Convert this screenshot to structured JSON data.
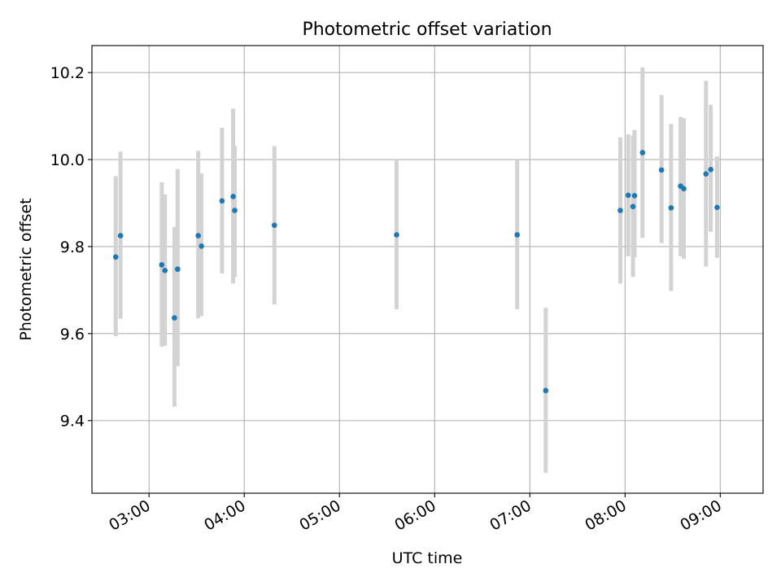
{
  "chart_data": {
    "type": "scatter",
    "title": "Photometric offset variation",
    "xlabel": "UTC time",
    "ylabel": "Photometric offset",
    "x_axis_type": "time",
    "xlim": [
      "02:24",
      "09:27"
    ],
    "ylim": [
      9.233,
      10.262
    ],
    "x_ticks": [
      "03:00",
      "04:00",
      "05:00",
      "06:00",
      "07:00",
      "08:00",
      "09:00"
    ],
    "y_ticks": [
      9.4,
      9.6,
      9.8,
      10.0,
      10.2
    ],
    "y_tick_labels": [
      "9.4",
      "9.6",
      "9.8",
      "10.0",
      "10.2"
    ],
    "grid": true,
    "legend": "none",
    "colors": {
      "points": "#1f77b4",
      "error_bars": "#d3d3d3",
      "grid": "#b0b0b0"
    },
    "points": [
      {
        "time": "02:39",
        "y": 9.776,
        "ylow": 9.594,
        "yhigh": 9.962
      },
      {
        "time": "02:42",
        "y": 9.825,
        "ylow": 9.634,
        "yhigh": 10.018
      },
      {
        "time": "03:08",
        "y": 9.758,
        "ylow": 9.57,
        "yhigh": 9.948
      },
      {
        "time": "03:10",
        "y": 9.745,
        "ylow": 9.572,
        "yhigh": 9.92
      },
      {
        "time": "03:16",
        "y": 9.636,
        "ylow": 9.432,
        "yhigh": 9.845
      },
      {
        "time": "03:18",
        "y": 9.748,
        "ylow": 9.525,
        "yhigh": 9.978
      },
      {
        "time": "03:31",
        "y": 9.825,
        "ylow": 9.635,
        "yhigh": 10.02
      },
      {
        "time": "03:33",
        "y": 9.801,
        "ylow": 9.64,
        "yhigh": 9.968
      },
      {
        "time": "03:46",
        "y": 9.905,
        "ylow": 9.738,
        "yhigh": 10.073
      },
      {
        "time": "03:53",
        "y": 9.915,
        "ylow": 9.715,
        "yhigh": 10.117
      },
      {
        "time": "03:54",
        "y": 9.883,
        "ylow": 9.73,
        "yhigh": 10.032
      },
      {
        "time": "04:19",
        "y": 9.849,
        "ylow": 9.667,
        "yhigh": 10.031
      },
      {
        "time": "05:36",
        "y": 9.827,
        "ylow": 9.656,
        "yhigh": 9.998
      },
      {
        "time": "06:52",
        "y": 9.827,
        "ylow": 9.656,
        "yhigh": 9.998
      },
      {
        "time": "07:10",
        "y": 9.469,
        "ylow": 9.28,
        "yhigh": 9.659
      },
      {
        "time": "07:57",
        "y": 9.883,
        "ylow": 9.715,
        "yhigh": 10.051
      },
      {
        "time": "08:02",
        "y": 9.918,
        "ylow": 9.778,
        "yhigh": 10.058
      },
      {
        "time": "08:05",
        "y": 9.892,
        "ylow": 9.73,
        "yhigh": 10.055
      },
      {
        "time": "08:06",
        "y": 9.917,
        "ylow": 9.775,
        "yhigh": 10.068
      },
      {
        "time": "08:11",
        "y": 10.016,
        "ylow": 9.82,
        "yhigh": 10.212
      },
      {
        "time": "08:23",
        "y": 9.976,
        "ylow": 9.808,
        "yhigh": 10.148
      },
      {
        "time": "08:29",
        "y": 9.889,
        "ylow": 9.698,
        "yhigh": 10.082
      },
      {
        "time": "08:35",
        "y": 9.939,
        "ylow": 9.778,
        "yhigh": 10.098
      },
      {
        "time": "08:37",
        "y": 9.933,
        "ylow": 9.772,
        "yhigh": 10.095
      },
      {
        "time": "08:51",
        "y": 9.967,
        "ylow": 9.754,
        "yhigh": 10.181
      },
      {
        "time": "08:54",
        "y": 9.977,
        "ylow": 9.834,
        "yhigh": 10.126
      },
      {
        "time": "08:58",
        "y": 9.89,
        "ylow": 9.774,
        "yhigh": 10.007
      }
    ]
  }
}
